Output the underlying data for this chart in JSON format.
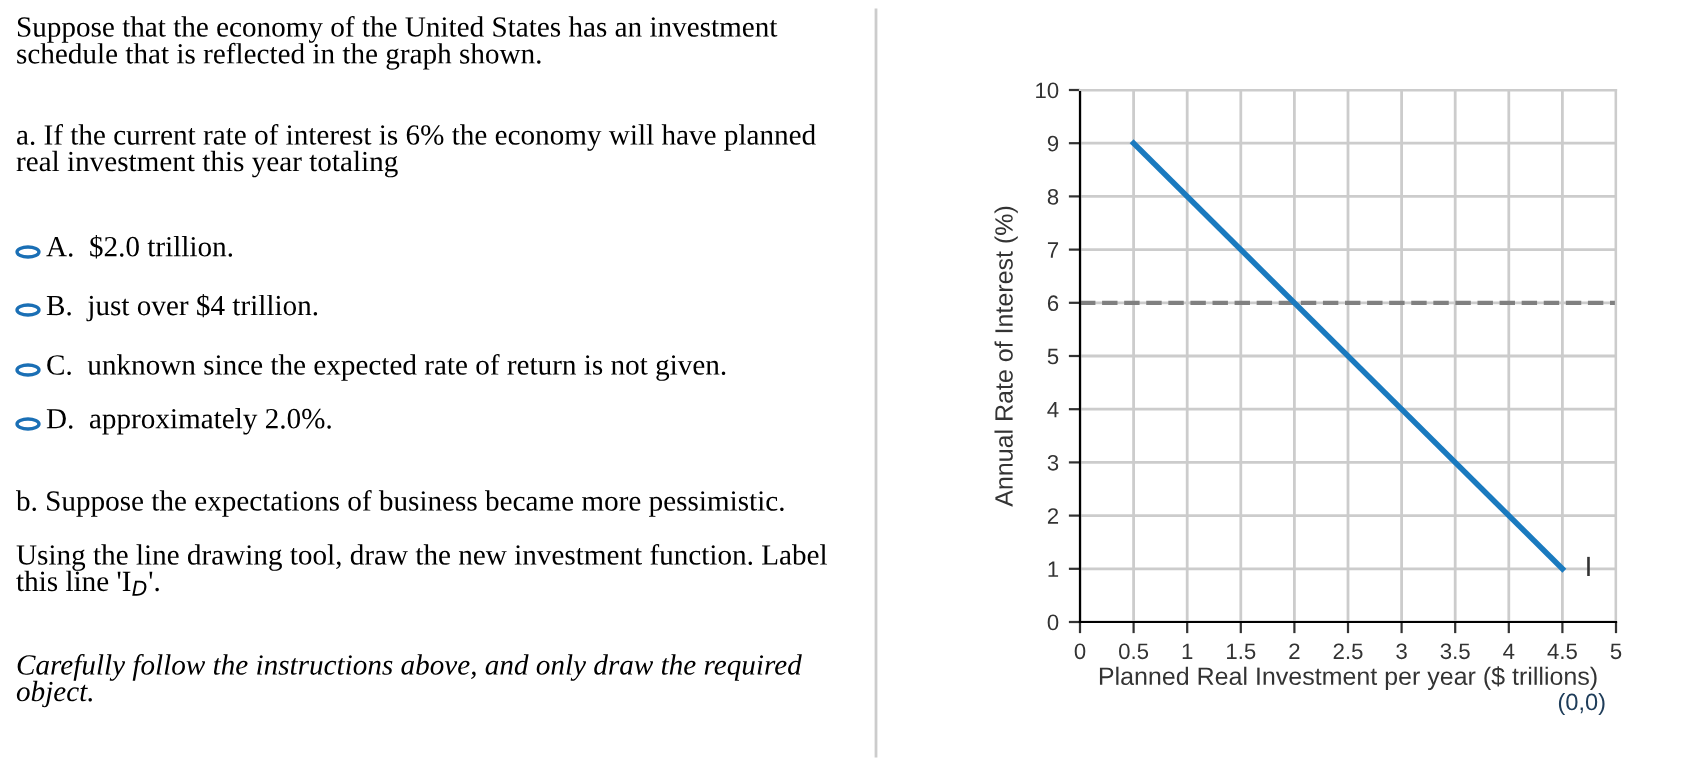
{
  "chart_data": {
    "type": "line",
    "xlabel": "Planned Real Investment per year ($ trillions)",
    "ylabel": "Annual Rate of Interest (%)",
    "series": [
      {
        "name": "I",
        "color": "#1a7abf",
        "x": [
          0.5,
          4.5
        ],
        "values": [
          9,
          1
        ]
      }
    ],
    "xlim": [
      0,
      5
    ],
    "xticks": [
      0,
      0.5,
      1,
      1.5,
      2,
      2.5,
      3,
      3.5,
      4,
      4.5,
      5
    ],
    "ylim": [
      0,
      10
    ],
    "yticks": [
      0,
      1,
      2,
      3,
      4,
      5,
      6,
      7,
      8,
      9,
      10
    ],
    "grid": true,
    "marker": "none",
    "line_style": "solid",
    "legend": false,
    "ref_lines": [
      {
        "axis": "y",
        "value": 6,
        "label": null,
        "color": "#808080",
        "line_style": "dashed"
      }
    ],
    "annotations": [
      "Suppose that the economy of the United States has an investment\nschedule that is reflected in the graph shown.",
      "a. If the current rate of interest is 6% the economy will have planned\nreal investment this year totaling",
      "A.  $2.0 trillion.",
      "B.  just over $4 trillion.",
      "C.  unknown since the expected rate of return is not given.",
      "D.  approximately 2.0%.",
      "b. Suppose the expectations of business became more pessimistic.",
      "Using the line drawing tool, draw the new investment function. Label\nthis line 'I$_{D}$'.",
      "Carefully follow the instructions above, and only draw the required\nobject.",
      "(0,0)"
    ]
  }
}
